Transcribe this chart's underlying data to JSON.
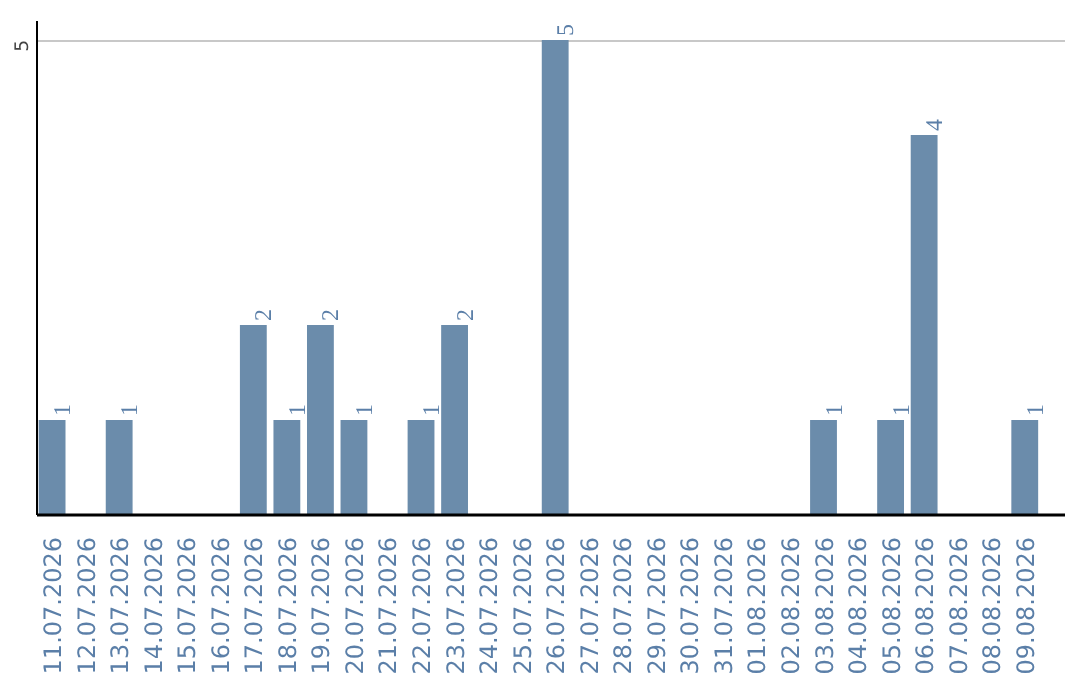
{
  "chart_data": {
    "type": "bar",
    "categories": [
      "11.07.2026",
      "12.07.2026",
      "13.07.2026",
      "14.07.2026",
      "15.07.2026",
      "16.07.2026",
      "17.07.2026",
      "18.07.2026",
      "19.07.2026",
      "20.07.2026",
      "21.07.2026",
      "22.07.2026",
      "23.07.2026",
      "24.07.2026",
      "25.07.2026",
      "26.07.2026",
      "27.07.2026",
      "28.07.2026",
      "29.07.2026",
      "30.07.2026",
      "31.07.2026",
      "01.08.2026",
      "02.08.2026",
      "03.08.2026",
      "04.08.2026",
      "05.08.2026",
      "06.08.2026",
      "07.08.2026",
      "08.08.2026",
      "09.08.2026"
    ],
    "values": [
      1,
      0,
      1,
      0,
      0,
      0,
      2,
      1,
      2,
      1,
      0,
      1,
      2,
      0,
      0,
      5,
      0,
      0,
      0,
      0,
      0,
      0,
      0,
      1,
      0,
      1,
      4,
      0,
      0,
      1
    ],
    "value_labels": [
      "1",
      null,
      "1",
      null,
      null,
      null,
      "2",
      "1",
      "2",
      "1",
      null,
      "1",
      "2",
      null,
      null,
      "5",
      null,
      null,
      null,
      null,
      null,
      null,
      null,
      "1",
      null,
      "1",
      "4",
      null,
      null,
      "1"
    ],
    "color": "#6b8cab",
    "ylim": [
      0,
      5.2
    ],
    "yticks": [
      5
    ],
    "grid": "y"
  }
}
